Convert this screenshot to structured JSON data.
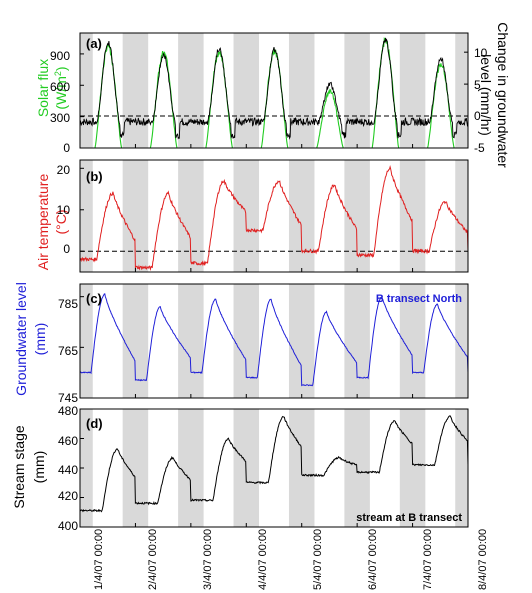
{
  "colors": {
    "solar": "#22cc22",
    "groundwater_change": "#000000",
    "air": "#e02020",
    "gw_level": "#2020d8",
    "stream": "#000000",
    "night_band": "#d9d9d9"
  },
  "x_ticks": [
    "1/4/07 00:00",
    "2/4/07 00:00",
    "3/4/07 00:00",
    "4/4/07 00:00",
    "5/4/07 00:00",
    "6/4/07 00:00",
    "7/4/07 00:00",
    "8/4/07 00:00"
  ],
  "chart_data": [
    {
      "type": "line",
      "panel_label": "(a)",
      "ylabel": "Solar flux (W/m²)",
      "ylabel_main": "Solar flux",
      "ylabel_unit": "(W/m",
      "ylabel_sup": "2",
      "ylabel_close": ")",
      "ylim": [
        0,
        1100
      ],
      "yticks": [
        "0",
        "300",
        "600",
        "900"
      ],
      "y2label_line1": "Change in groundwater",
      "y2label_line2": "level (mm/hr)",
      "y2lim": [
        -5,
        13
      ],
      "y2ticks": [
        "-5",
        "0",
        "5",
        "10"
      ],
      "dashed_ref_y2": 0,
      "series": [
        {
          "name": "",
          "axis": "left",
          "color_key": "solar",
          "daily_peaks": [
            1000,
            940,
            950,
            960,
            560,
            1060,
            830
          ]
        },
        {
          "name": "",
          "axis": "right",
          "color_key": "groundwater_change",
          "daily_peaks": [
            11.5,
            9.5,
            10.5,
            10.5,
            5,
            12,
            9
          ]
        }
      ]
    },
    {
      "type": "line",
      "panel_label": "(b)",
      "ylabel": "Air temperature (°C)",
      "ylabel_line1": "Air temperature",
      "ylabel_line2": "(°C)",
      "ylim": [
        -5,
        22
      ],
      "yticks": [
        "0",
        "10",
        "20"
      ],
      "dashed_ref_y": 0,
      "series": [
        {
          "name": "",
          "color_key": "air",
          "daily_max": [
            14,
            14,
            17,
            17,
            16,
            20,
            12
          ],
          "daily_min": [
            -2,
            -4,
            -3,
            5,
            0,
            -1,
            0
          ]
        }
      ]
    },
    {
      "type": "line",
      "panel_label": "(c)",
      "annotation": "B transect North",
      "ylabel": "Groundwater level (mm)",
      "ylabel_line1": "Groundwater level",
      "ylabel_line2": "(mm)",
      "ylim": [
        745,
        790
      ],
      "yticks": [
        "745",
        "765",
        "785"
      ],
      "series": [
        {
          "name": "",
          "color_key": "gw_level",
          "daily_max": [
            786,
            781,
            784,
            784,
            779,
            785,
            782
          ],
          "daily_min": [
            755,
            752,
            755,
            753,
            750,
            753,
            755
          ]
        }
      ]
    },
    {
      "type": "line",
      "panel_label": "(d)",
      "annotation": "stream at B transect",
      "ylabel": "Stream stage (mm)",
      "ylabel_line1": "Stream stage",
      "ylabel_line2": "(mm)",
      "ylim": [
        400,
        480
      ],
      "yticks": [
        "400",
        "420",
        "440",
        "460",
        "480"
      ],
      "series": [
        {
          "name": "",
          "color_key": "stream",
          "daily_max": [
            453,
            447,
            460,
            475,
            447,
            472,
            475
          ],
          "daily_min": [
            411,
            416,
            418,
            430,
            435,
            437,
            442
          ]
        }
      ]
    }
  ]
}
